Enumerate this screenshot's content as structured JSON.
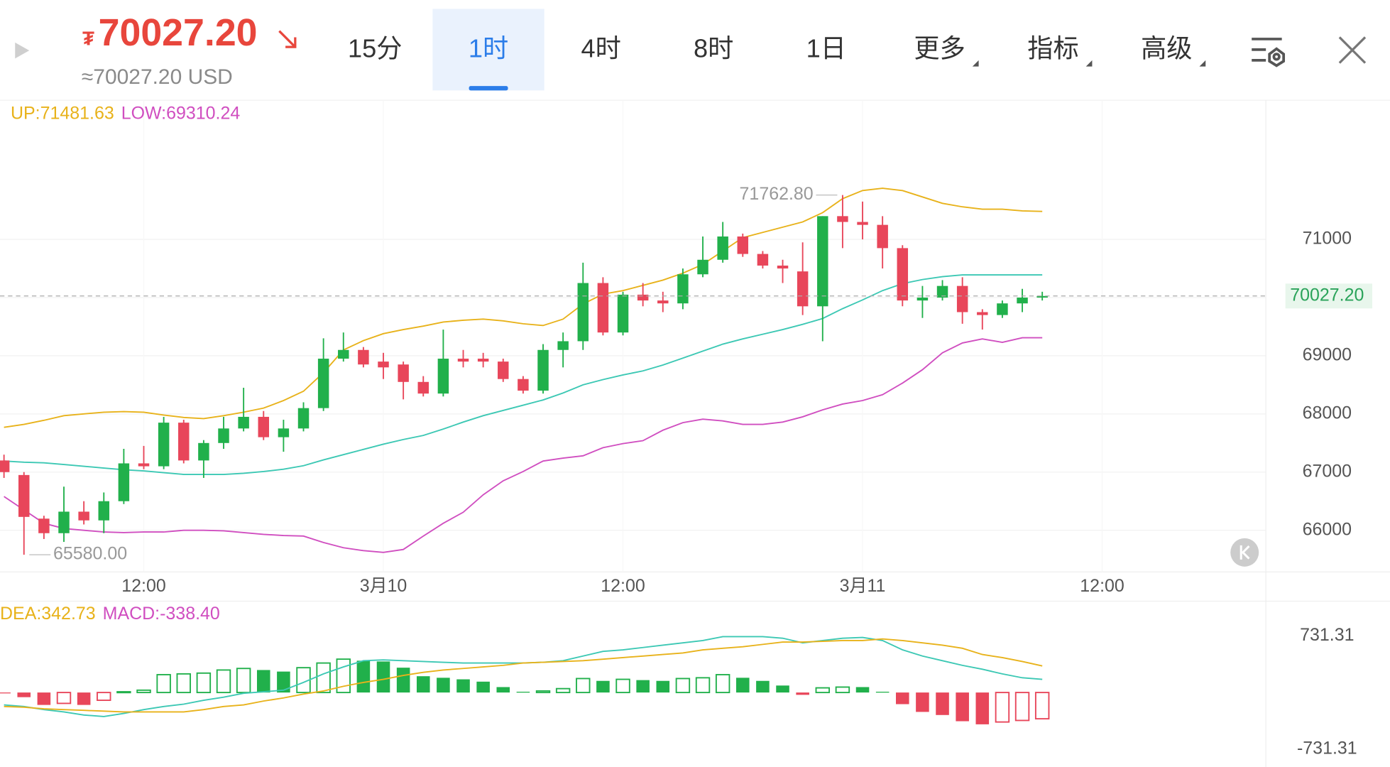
{
  "header": {
    "currency_symbol": "₮",
    "price": "70027.20",
    "approx": "≈70027.20 USD"
  },
  "tabs": {
    "items": [
      "15分",
      "1时",
      "4时",
      "8时",
      "1日",
      "更多",
      "指标",
      "高级"
    ],
    "selected": 1
  },
  "chart_data": [
    {
      "type": "candlestick",
      "x": [
        0,
        1,
        2,
        3,
        4,
        5,
        6,
        7,
        8,
        9,
        10,
        11,
        12,
        13,
        14,
        15,
        16,
        17,
        18,
        19,
        20,
        21,
        22,
        23,
        24,
        25,
        26,
        27,
        28,
        29,
        30,
        31,
        32,
        33,
        34,
        35,
        36,
        37,
        38,
        39,
        40,
        41,
        42,
        43,
        44,
        45,
        46,
        47,
        48,
        49,
        50,
        51,
        52
      ],
      "open": [
        67200,
        66950,
        66200,
        65950,
        66320,
        66170,
        66500,
        67150,
        67100,
        67850,
        67200,
        67500,
        67750,
        67950,
        67600,
        67750,
        68100,
        68950,
        69100,
        68900,
        68850,
        68550,
        68350,
        68950,
        68950,
        68900,
        68600,
        68400,
        69100,
        69250,
        70250,
        69400,
        70050,
        69950,
        69900,
        70400,
        70650,
        71050,
        70750,
        70550,
        70450,
        69850,
        71400,
        71300,
        71250,
        70850,
        69950,
        70000,
        70200,
        69750,
        69700,
        69900,
        70000
      ],
      "high": [
        67300,
        67000,
        66250,
        66750,
        66500,
        66650,
        67400,
        67450,
        67950,
        67900,
        67550,
        67950,
        68450,
        68050,
        67900,
        68200,
        69300,
        69400,
        69150,
        69050,
        68900,
        68650,
        69450,
        69100,
        69050,
        68950,
        68650,
        69200,
        69400,
        70600,
        70350,
        70100,
        70250,
        70100,
        70500,
        71050,
        71300,
        71100,
        70800,
        70650,
        70950,
        71400,
        71762.8,
        71650,
        71400,
        70900,
        70200,
        70300,
        70350,
        69800,
        69950,
        70150,
        70100
      ],
      "low": [
        66900,
        65580,
        65850,
        65800,
        66100,
        65950,
        66450,
        67050,
        67050,
        67150,
        66900,
        67400,
        67700,
        67550,
        67350,
        67700,
        68050,
        68900,
        68800,
        68600,
        68250,
        68300,
        68300,
        68800,
        68800,
        68550,
        68350,
        68350,
        68800,
        69100,
        69350,
        69350,
        69850,
        69750,
        69800,
        70350,
        70600,
        70700,
        70500,
        70250,
        69700,
        69250,
        70850,
        71000,
        70500,
        69850,
        69650,
        69950,
        69550,
        69450,
        69650,
        69750,
        69950
      ],
      "close": [
        67000,
        66230,
        65950,
        66320,
        66170,
        66500,
        67150,
        67100,
        67850,
        67200,
        67500,
        67750,
        67950,
        67600,
        67750,
        68100,
        68950,
        69100,
        68850,
        68800,
        68550,
        68350,
        68950,
        68900,
        68900,
        68600,
        68400,
        69100,
        69250,
        70250,
        69400,
        70050,
        69950,
        69900,
        70400,
        70650,
        71050,
        70750,
        70550,
        70500,
        69850,
        71400,
        71300,
        71250,
        70850,
        69950,
        70000,
        70200,
        69750,
        69700,
        69900,
        70000,
        70027.2
      ],
      "up_color": "#21b04b",
      "down_color": "#e8465a",
      "series": [
        {
          "color": "#e8b21a",
          "values": [
            67770,
            67820,
            67890,
            67970,
            68000,
            68030,
            68040,
            68030,
            67980,
            67940,
            67920,
            67970,
            68030,
            68100,
            68230,
            68390,
            68710,
            69100,
            69260,
            69380,
            69450,
            69510,
            69580,
            69610,
            69630,
            69600,
            69550,
            69520,
            69630,
            69890,
            70060,
            70120,
            70210,
            70300,
            70420,
            70570,
            70800,
            71030,
            71120,
            71210,
            71300,
            71460,
            71700,
            71840,
            71880,
            71840,
            71730,
            71620,
            71560,
            71520,
            71520,
            71490,
            71481.63
          ]
        },
        {
          "color": "#3cc8b4",
          "values": [
            67190,
            67170,
            67160,
            67130,
            67100,
            67070,
            67040,
            67020,
            66990,
            66960,
            66960,
            66960,
            66980,
            67010,
            67050,
            67110,
            67210,
            67300,
            67390,
            67480,
            67560,
            67630,
            67740,
            67860,
            67970,
            68060,
            68150,
            68240,
            68360,
            68500,
            68590,
            68670,
            68740,
            68840,
            68960,
            69080,
            69200,
            69290,
            69370,
            69450,
            69540,
            69640,
            69810,
            69960,
            70120,
            70240,
            70310,
            70360,
            70390,
            70390,
            70390,
            70390,
            70390
          ]
        },
        {
          "color": "#d04ec0",
          "values": [
            66580,
            66350,
            66120,
            66030,
            66000,
            65970,
            65960,
            65970,
            65970,
            66000,
            66000,
            65990,
            65960,
            65930,
            65910,
            65900,
            65790,
            65700,
            65650,
            65620,
            65670,
            65900,
            66120,
            66310,
            66610,
            66850,
            67010,
            67190,
            67240,
            67280,
            67420,
            67490,
            67540,
            67720,
            67850,
            67910,
            67880,
            67820,
            67820,
            67860,
            67950,
            68070,
            68170,
            68230,
            68330,
            68530,
            68760,
            69050,
            69220,
            69290,
            69230,
            69310,
            69310.24
          ]
        }
      ],
      "legend": [
        {
          "text": "UP:71481.63",
          "color": "#e8b21a"
        },
        {
          "text": "LOW:69310.24",
          "color": "#d04ec0"
        }
      ],
      "xlim": [
        -0.2,
        63.2
      ],
      "xticks": [
        {
          "value": 7,
          "label": "12:00"
        },
        {
          "value": 19,
          "label": "3月10"
        },
        {
          "value": 31,
          "label": "12:00"
        },
        {
          "value": 43,
          "label": "3月11"
        },
        {
          "value": 55,
          "label": "12:00"
        }
      ],
      "ylim": [
        65284,
        73393
      ],
      "yticks": [
        66000,
        67000,
        68000,
        69000,
        70000,
        71000
      ],
      "current_price": {
        "value": 70027.2,
        "label": "70027.20"
      },
      "annotations": [
        {
          "value": 71762.8,
          "label": "71762.80",
          "x": 42,
          "side": "left"
        },
        {
          "value": 65580,
          "label": "65580.00",
          "x": 1,
          "side": "right"
        }
      ],
      "grid": true
    },
    {
      "type": "macd",
      "x": [
        0,
        1,
        2,
        3,
        4,
        5,
        6,
        7,
        8,
        9,
        10,
        11,
        12,
        13,
        14,
        15,
        16,
        17,
        18,
        19,
        20,
        21,
        22,
        23,
        24,
        25,
        26,
        27,
        28,
        29,
        30,
        31,
        32,
        33,
        34,
        35,
        36,
        37,
        38,
        39,
        40,
        41,
        42,
        43,
        44,
        45,
        46,
        47,
        48,
        49,
        50,
        51,
        52
      ],
      "histogram": [
        -10,
        -60,
        -160,
        -140,
        -160,
        -100,
        10,
        30,
        230,
        240,
        250,
        290,
        310,
        290,
        270,
        320,
        380,
        430,
        410,
        400,
        320,
        210,
        190,
        170,
        140,
        70,
        10,
        20,
        50,
        180,
        150,
        170,
        160,
        150,
        180,
        190,
        230,
        190,
        150,
        90,
        -30,
        60,
        70,
        70,
        10,
        -150,
        -250,
        -290,
        -370,
        -410,
        -380,
        -360,
        -338.4
      ],
      "up_color": "#21b04b",
      "down_color": "#e8465a",
      "series": [
        {
          "color": "#3cc8b4",
          "values": [
            -160,
            -180,
            -220,
            -250,
            -290,
            -310,
            -270,
            -220,
            -180,
            -150,
            -100,
            -60,
            -10,
            10,
            30,
            130,
            240,
            330,
            410,
            420,
            410,
            400,
            390,
            380,
            380,
            380,
            380,
            390,
            410,
            470,
            530,
            550,
            580,
            610,
            640,
            670,
            720,
            720,
            720,
            700,
            640,
            670,
            700,
            710,
            670,
            550,
            470,
            410,
            350,
            300,
            240,
            190,
            170
          ]
        },
        {
          "color": "#e8b21a",
          "values": [
            -180,
            -190,
            -210,
            -220,
            -230,
            -240,
            -250,
            -250,
            -250,
            -250,
            -220,
            -180,
            -160,
            -110,
            -70,
            -20,
            20,
            80,
            130,
            170,
            220,
            260,
            290,
            310,
            330,
            350,
            380,
            390,
            400,
            410,
            430,
            450,
            470,
            490,
            510,
            550,
            570,
            590,
            620,
            650,
            650,
            660,
            670,
            670,
            690,
            670,
            640,
            610,
            570,
            490,
            450,
            400,
            342.73
          ]
        }
      ],
      "legend": [
        {
          "text": "DEA:342.73",
          "color": "#e8b21a"
        },
        {
          "text": "MACD:-338.40",
          "color": "#d04ec0"
        }
      ],
      "xlim": [
        -0.2,
        63.2
      ],
      "ylim": [
        -960,
        1177
      ],
      "yticks": [
        731.31,
        -731.31
      ]
    }
  ]
}
